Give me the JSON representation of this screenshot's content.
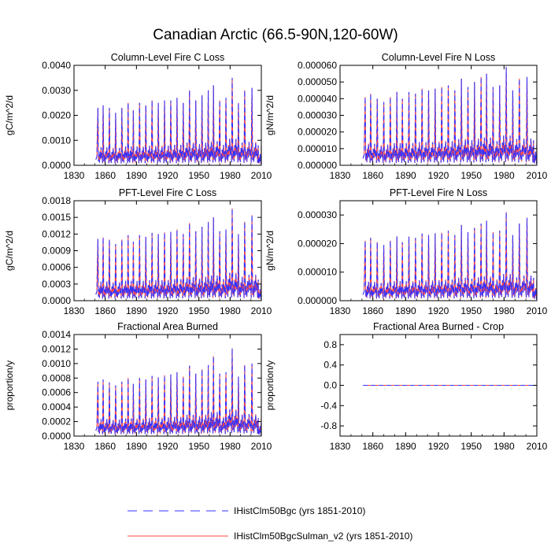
{
  "figure": {
    "title": "Canadian Arctic (66.5-90N,120-60W)"
  },
  "legend": {
    "placement": "bottom",
    "entries": [
      {
        "name": "IHistClm50Bgc (yrs 1851-2010)",
        "color": "#3333ff",
        "style": "dashed"
      },
      {
        "name": "IHistClm50BgcSulman_v2 (yrs 1851-2010)",
        "color": "#ff4444",
        "style": "solid"
      }
    ]
  },
  "chart_data": [
    {
      "type": "line",
      "title": "Column-Level Fire C Loss",
      "xlabel": "",
      "ylabel": "gC/m^2/d",
      "xlim": [
        1830,
        2010
      ],
      "ylim": [
        0,
        0.004
      ],
      "xticks": [
        1830,
        1860,
        1890,
        1920,
        1950,
        1980,
        2010
      ],
      "yticks": [
        0,
        0.001,
        0.002,
        0.003,
        0.004
      ],
      "ytick_labels": [
        "0.0000",
        "0.0010",
        "0.0020",
        "0.0030",
        "0.0040"
      ],
      "data_start": 1851,
      "data_end": 2010,
      "peaks": [
        {
          "x": 1853,
          "y": 0.0023
        },
        {
          "x": 1858,
          "y": 0.0024
        },
        {
          "x": 1864,
          "y": 0.0023
        },
        {
          "x": 1870,
          "y": 0.0021
        },
        {
          "x": 1876,
          "y": 0.0023
        },
        {
          "x": 1882,
          "y": 0.0025
        },
        {
          "x": 1887,
          "y": 0.0022
        },
        {
          "x": 1893,
          "y": 0.0025
        },
        {
          "x": 1899,
          "y": 0.0024
        },
        {
          "x": 1905,
          "y": 0.0026
        },
        {
          "x": 1911,
          "y": 0.0025
        },
        {
          "x": 1917,
          "y": 0.0026
        },
        {
          "x": 1923,
          "y": 0.0026
        },
        {
          "x": 1929,
          "y": 0.0027
        },
        {
          "x": 1935,
          "y": 0.0025
        },
        {
          "x": 1941,
          "y": 0.003
        },
        {
          "x": 1947,
          "y": 0.0026
        },
        {
          "x": 1953,
          "y": 0.0028
        },
        {
          "x": 1959,
          "y": 0.003
        },
        {
          "x": 1964,
          "y": 0.0032
        },
        {
          "x": 1970,
          "y": 0.0026
        },
        {
          "x": 1976,
          "y": 0.0027
        },
        {
          "x": 1982,
          "y": 0.0035
        },
        {
          "x": 1988,
          "y": 0.0025
        },
        {
          "x": 1994,
          "y": 0.003
        },
        {
          "x": 2001,
          "y": 0.0031
        },
        {
          "x": 2007,
          "y": 0.0008
        }
      ],
      "series": [
        {
          "name": "IHistClm50Bgc (yrs 1851-2010)",
          "color": "#3333ff",
          "style": "dashed"
        },
        {
          "name": "IHistClm50BgcSulman_v2 (yrs 1851-2010)",
          "color": "#ff4444",
          "style": "solid"
        }
      ]
    },
    {
      "type": "line",
      "title": "Column-Level Fire N Loss",
      "xlabel": "",
      "ylabel": "gN/m^2/d",
      "xlim": [
        1830,
        2010
      ],
      "ylim": [
        0,
        6e-05
      ],
      "xticks": [
        1830,
        1860,
        1890,
        1920,
        1950,
        1980,
        2010
      ],
      "yticks": [
        0,
        1e-05,
        2e-05,
        3e-05,
        4e-05,
        5e-05,
        6e-05
      ],
      "ytick_labels": [
        "0.000000",
        "0.000010",
        "0.000020",
        "0.000030",
        "0.000040",
        "0.000050",
        "0.000060"
      ],
      "data_start": 1851,
      "data_end": 2010,
      "peaks": [
        {
          "x": 1853,
          "y": 4.1e-05
        },
        {
          "x": 1858,
          "y": 4.3e-05
        },
        {
          "x": 1864,
          "y": 4e-05
        },
        {
          "x": 1870,
          "y": 3.8e-05
        },
        {
          "x": 1876,
          "y": 4.1e-05
        },
        {
          "x": 1882,
          "y": 4.4e-05
        },
        {
          "x": 1887,
          "y": 4e-05
        },
        {
          "x": 1893,
          "y": 4.4e-05
        },
        {
          "x": 1899,
          "y": 4.3e-05
        },
        {
          "x": 1905,
          "y": 4.6e-05
        },
        {
          "x": 1911,
          "y": 4.5e-05
        },
        {
          "x": 1917,
          "y": 4.6e-05
        },
        {
          "x": 1923,
          "y": 4.7e-05
        },
        {
          "x": 1929,
          "y": 4.8e-05
        },
        {
          "x": 1935,
          "y": 4.5e-05
        },
        {
          "x": 1941,
          "y": 5.2e-05
        },
        {
          "x": 1947,
          "y": 4.7e-05
        },
        {
          "x": 1953,
          "y": 5e-05
        },
        {
          "x": 1959,
          "y": 5.3e-05
        },
        {
          "x": 1964,
          "y": 5.5e-05
        },
        {
          "x": 1970,
          "y": 4.7e-05
        },
        {
          "x": 1976,
          "y": 4.8e-05
        },
        {
          "x": 1982,
          "y": 5.9e-05
        },
        {
          "x": 1988,
          "y": 4.5e-05
        },
        {
          "x": 1994,
          "y": 5.2e-05
        },
        {
          "x": 2001,
          "y": 5.3e-05
        },
        {
          "x": 2007,
          "y": 1.5e-05
        }
      ],
      "series": [
        {
          "name": "IHistClm50Bgc (yrs 1851-2010)",
          "color": "#3333ff",
          "style": "dashed"
        },
        {
          "name": "IHistClm50BgcSulman_v2 (yrs 1851-2010)",
          "color": "#ff4444",
          "style": "solid"
        }
      ]
    },
    {
      "type": "line",
      "title": "PFT-Level Fire C Loss",
      "xlabel": "",
      "ylabel": "gC/m^2/d",
      "xlim": [
        1830,
        2010
      ],
      "ylim": [
        0,
        0.0018
      ],
      "xticks": [
        1830,
        1860,
        1890,
        1920,
        1950,
        1980,
        2010
      ],
      "yticks": [
        0,
        0.0003,
        0.0006,
        0.0009,
        0.0012,
        0.0015,
        0.0018
      ],
      "ytick_labels": [
        "0.0000",
        "0.0003",
        "0.0006",
        "0.0009",
        "0.0012",
        "0.0015",
        "0.0018"
      ],
      "data_start": 1851,
      "data_end": 2010,
      "peaks": [
        {
          "x": 1853,
          "y": 0.00111
        },
        {
          "x": 1858,
          "y": 0.00114
        },
        {
          "x": 1864,
          "y": 0.0011
        },
        {
          "x": 1870,
          "y": 0.00102
        },
        {
          "x": 1876,
          "y": 0.0011
        },
        {
          "x": 1882,
          "y": 0.00118
        },
        {
          "x": 1887,
          "y": 0.00106
        },
        {
          "x": 1893,
          "y": 0.00118
        },
        {
          "x": 1899,
          "y": 0.00115
        },
        {
          "x": 1905,
          "y": 0.00122
        },
        {
          "x": 1911,
          "y": 0.0012
        },
        {
          "x": 1917,
          "y": 0.00123
        },
        {
          "x": 1923,
          "y": 0.00124
        },
        {
          "x": 1929,
          "y": 0.00128
        },
        {
          "x": 1935,
          "y": 0.0012
        },
        {
          "x": 1941,
          "y": 0.0014
        },
        {
          "x": 1947,
          "y": 0.00125
        },
        {
          "x": 1953,
          "y": 0.00133
        },
        {
          "x": 1959,
          "y": 0.00142
        },
        {
          "x": 1964,
          "y": 0.0015
        },
        {
          "x": 1970,
          "y": 0.00125
        },
        {
          "x": 1976,
          "y": 0.00128
        },
        {
          "x": 1982,
          "y": 0.00166
        },
        {
          "x": 1988,
          "y": 0.0012
        },
        {
          "x": 1994,
          "y": 0.00142
        },
        {
          "x": 2001,
          "y": 0.00154
        },
        {
          "x": 2007,
          "y": 0.00038
        }
      ],
      "series": [
        {
          "name": "IHistClm50Bgc (yrs 1851-2010)",
          "color": "#3333ff",
          "style": "dashed"
        },
        {
          "name": "IHistClm50BgcSulman_v2 (yrs 1851-2010)",
          "color": "#ff4444",
          "style": "solid"
        }
      ]
    },
    {
      "type": "line",
      "title": "PFT-Level Fire N Loss",
      "xlabel": "",
      "ylabel": "gN/m^2/d",
      "xlim": [
        1830,
        2010
      ],
      "ylim": [
        0,
        3.5e-05
      ],
      "xticks": [
        1830,
        1860,
        1890,
        1920,
        1950,
        1980,
        2010
      ],
      "yticks": [
        0,
        1e-05,
        2e-05,
        3e-05
      ],
      "ytick_labels": [
        "0.000000",
        "0.000010",
        "0.000020",
        "0.000030"
      ],
      "data_start": 1851,
      "data_end": 2010,
      "peaks": [
        {
          "x": 1853,
          "y": 2.1e-05
        },
        {
          "x": 1858,
          "y": 2.2e-05
        },
        {
          "x": 1864,
          "y": 2.05e-05
        },
        {
          "x": 1870,
          "y": 1.95e-05
        },
        {
          "x": 1876,
          "y": 2.1e-05
        },
        {
          "x": 1882,
          "y": 2.25e-05
        },
        {
          "x": 1887,
          "y": 2.05e-05
        },
        {
          "x": 1893,
          "y": 2.25e-05
        },
        {
          "x": 1899,
          "y": 2.2e-05
        },
        {
          "x": 1905,
          "y": 2.35e-05
        },
        {
          "x": 1911,
          "y": 2.3e-05
        },
        {
          "x": 1917,
          "y": 2.36e-05
        },
        {
          "x": 1923,
          "y": 2.38e-05
        },
        {
          "x": 1929,
          "y": 2.45e-05
        },
        {
          "x": 1935,
          "y": 2.3e-05
        },
        {
          "x": 1941,
          "y": 2.65e-05
        },
        {
          "x": 1947,
          "y": 2.4e-05
        },
        {
          "x": 1953,
          "y": 2.55e-05
        },
        {
          "x": 1959,
          "y": 2.7e-05
        },
        {
          "x": 1964,
          "y": 2.8e-05
        },
        {
          "x": 1970,
          "y": 2.4e-05
        },
        {
          "x": 1976,
          "y": 2.45e-05
        },
        {
          "x": 1982,
          "y": 3.1e-05
        },
        {
          "x": 1988,
          "y": 2.3e-05
        },
        {
          "x": 1994,
          "y": 2.7e-05
        },
        {
          "x": 2001,
          "y": 2.9e-05
        },
        {
          "x": 2007,
          "y": 8e-06
        }
      ],
      "series": [
        {
          "name": "IHistClm50Bgc (yrs 1851-2010)",
          "color": "#3333ff",
          "style": "dashed"
        },
        {
          "name": "IHistClm50BgcSulman_v2 (yrs 1851-2010)",
          "color": "#ff4444",
          "style": "solid"
        }
      ]
    },
    {
      "type": "line",
      "title": "Fractional Area Burned",
      "xlabel": "",
      "ylabel": "proportion/y",
      "xlim": [
        1830,
        2010
      ],
      "ylim": [
        0,
        0.0014
      ],
      "xticks": [
        1830,
        1860,
        1890,
        1920,
        1950,
        1980,
        2010
      ],
      "yticks": [
        0,
        0.0002,
        0.0004,
        0.0006,
        0.0008,
        0.001,
        0.0012,
        0.0014
      ],
      "ytick_labels": [
        "0.0000",
        "0.0002",
        "0.0004",
        "0.0006",
        "0.0008",
        "0.0010",
        "0.0012",
        "0.0014"
      ],
      "data_start": 1851,
      "data_end": 2010,
      "peaks": [
        {
          "x": 1853,
          "y": 0.00075
        },
        {
          "x": 1858,
          "y": 0.00078
        },
        {
          "x": 1864,
          "y": 0.00074
        },
        {
          "x": 1870,
          "y": 0.0007
        },
        {
          "x": 1876,
          "y": 0.00075
        },
        {
          "x": 1882,
          "y": 0.0008
        },
        {
          "x": 1887,
          "y": 0.00072
        },
        {
          "x": 1893,
          "y": 0.0008
        },
        {
          "x": 1899,
          "y": 0.00078
        },
        {
          "x": 1905,
          "y": 0.00083
        },
        {
          "x": 1911,
          "y": 0.00081
        },
        {
          "x": 1917,
          "y": 0.00084
        },
        {
          "x": 1923,
          "y": 0.00085
        },
        {
          "x": 1929,
          "y": 0.00088
        },
        {
          "x": 1935,
          "y": 0.00082
        },
        {
          "x": 1941,
          "y": 0.00097
        },
        {
          "x": 1947,
          "y": 0.00086
        },
        {
          "x": 1953,
          "y": 0.00092
        },
        {
          "x": 1959,
          "y": 0.00098
        },
        {
          "x": 1964,
          "y": 0.0011
        },
        {
          "x": 1970,
          "y": 0.00086
        },
        {
          "x": 1976,
          "y": 0.00088
        },
        {
          "x": 1982,
          "y": 0.00121
        },
        {
          "x": 1988,
          "y": 0.00082
        },
        {
          "x": 1994,
          "y": 0.00098
        },
        {
          "x": 2001,
          "y": 0.001
        },
        {
          "x": 2007,
          "y": 0.00025
        }
      ],
      "series": [
        {
          "name": "IHistClm50Bgc (yrs 1851-2010)",
          "color": "#3333ff",
          "style": "dashed"
        },
        {
          "name": "IHistClm50BgcSulman_v2 (yrs 1851-2010)",
          "color": "#ff4444",
          "style": "solid"
        }
      ]
    },
    {
      "type": "line",
      "title": "Fractional Area Burned - Crop",
      "xlabel": "",
      "ylabel": "proportion/y",
      "xlim": [
        1830,
        2010
      ],
      "ylim": [
        -1,
        1
      ],
      "xticks": [
        1830,
        1860,
        1890,
        1920,
        1950,
        1980,
        2010
      ],
      "yticks": [
        -0.8,
        -0.4,
        0,
        0.4,
        0.8
      ],
      "ytick_labels": [
        "-0.8",
        "-0.4",
        "0.0",
        "0.4",
        "0.8"
      ],
      "data_start": 1851,
      "data_end": 2010,
      "constant": 0,
      "series": [
        {
          "name": "IHistClm50Bgc (yrs 1851-2010)",
          "color": "#3333ff",
          "style": "dashed"
        },
        {
          "name": "IHistClm50BgcSulman_v2 (yrs 1851-2010)",
          "color": "#ff4444",
          "style": "solid"
        }
      ]
    }
  ]
}
